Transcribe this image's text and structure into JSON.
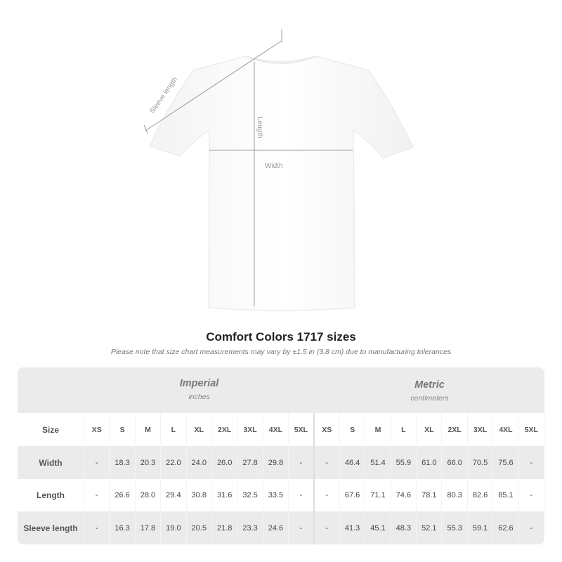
{
  "diagram": {
    "sleeve_label": "Sleeve length",
    "length_label": "Length",
    "width_label": "Width"
  },
  "title": "Comfort Colors 1717 sizes",
  "note": "Please note that size chart measurements may vary by ±1.5 in (3.8 cm) due to manufacturing tolerances",
  "table": {
    "imperial": {
      "name": "Imperial",
      "unit": "inches"
    },
    "metric": {
      "name": "Metric",
      "unit": "centimeters"
    },
    "size_label": "Size",
    "sizes": [
      "XS",
      "S",
      "M",
      "L",
      "XL",
      "2XL",
      "3XL",
      "4XL",
      "5XL"
    ],
    "rows": [
      {
        "label": "Width",
        "imperial": [
          "-",
          "18.3",
          "20.3",
          "22.0",
          "24.0",
          "26.0",
          "27.8",
          "29.8",
          "-"
        ],
        "metric": [
          "-",
          "46.4",
          "51.4",
          "55.9",
          "61.0",
          "66.0",
          "70.5",
          "75.6",
          "-"
        ]
      },
      {
        "label": "Length",
        "imperial": [
          "-",
          "26.6",
          "28.0",
          "29.4",
          "30.8",
          "31.6",
          "32.5",
          "33.5",
          "-"
        ],
        "metric": [
          "-",
          "67.6",
          "71.1",
          "74.6",
          "78.1",
          "80.3",
          "82.6",
          "85.1",
          "-"
        ]
      },
      {
        "label": "Sleeve length",
        "imperial": [
          "-",
          "16.3",
          "17.8",
          "19.0",
          "20.5",
          "21.8",
          "23.3",
          "24.6",
          "-"
        ],
        "metric": [
          "-",
          "41.3",
          "45.1",
          "48.3",
          "52.1",
          "55.3",
          "59.1",
          "62.6",
          "-"
        ]
      }
    ]
  }
}
